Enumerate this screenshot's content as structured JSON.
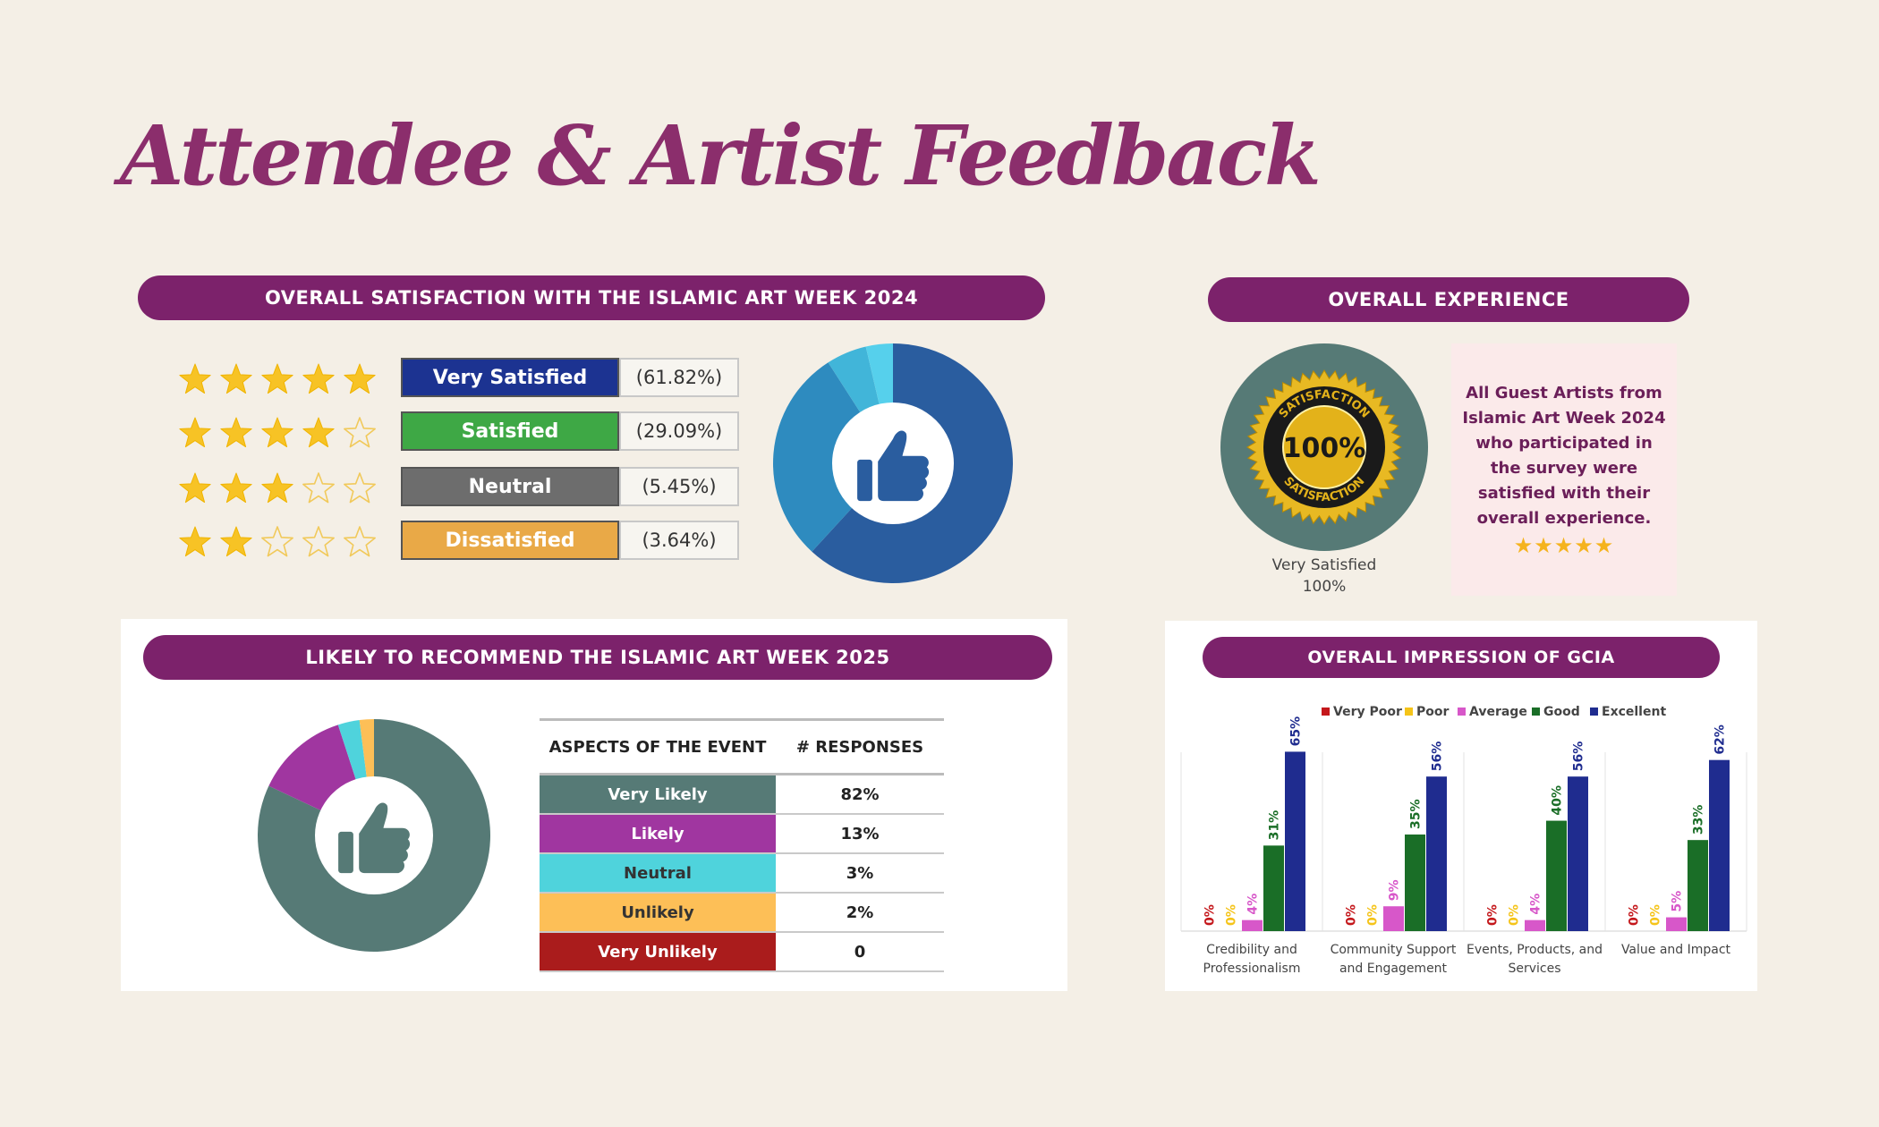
{
  "page_title": "Attendee & Artist Feedback",
  "satisfaction": {
    "header": "OVERALL SATISFACTION WITH THE ISLAMIC ART WEEK 2024",
    "rows": [
      {
        "label": "Very Satisfied",
        "pct": "(61.82%)",
        "stars": 5,
        "color": "#1c3391"
      },
      {
        "label": "Satisfied",
        "pct": "(29.09%)",
        "stars": 4,
        "color": "#3ea845"
      },
      {
        "label": "Neutral",
        "pct": "(5.45%)",
        "stars": 3,
        "color": "#6d6d6d"
      },
      {
        "label": "Dissatisfied",
        "pct": "(3.64%)",
        "stars": 2,
        "color": "#e9a947"
      }
    ]
  },
  "experience": {
    "header": "OVERALL EXPERIENCE",
    "seal_top": "SATISFACTION",
    "seal_center": "100%",
    "seal_bottom": "SATISFACTION",
    "caption_label": "Very Satisfied",
    "caption_value": "100%",
    "note_lines": [
      "All Guest Artists from",
      "Islamic Art Week 2024",
      "who participated in",
      "the survey were",
      "satisfied with their",
      "overall experience."
    ],
    "note_stars": "★★★★★"
  },
  "recommend": {
    "header": "LIKELY TO RECOMMEND THE ISLAMIC ART WEEK 2025",
    "col_aspect": "ASPECTS OF THE EVENT",
    "col_responses": "# RESPONSES",
    "rows": [
      {
        "label": "Very Likely",
        "value": "82%",
        "color": "#567a76"
      },
      {
        "label": "Likely",
        "value": "13%",
        "color": "#a036a0"
      },
      {
        "label": "Neutral",
        "value": "3%",
        "color": "#4fd3dc"
      },
      {
        "label": "Unlikely",
        "value": "2%",
        "color": "#fdbf57"
      },
      {
        "label": "Very Unlikely",
        "value": "0",
        "color": "#aa1c1c"
      }
    ]
  },
  "gcia": {
    "header": "OVERALL IMPRESSION OF GCIA"
  },
  "chart_data": [
    {
      "type": "pie",
      "categories": [
        "Very Satisfied",
        "Satisfied",
        "Neutral",
        "Dissatisfied"
      ],
      "values": [
        61.82,
        29.09,
        5.45,
        3.64
      ],
      "colors": [
        "#2a5d9f",
        "#2e8bbf",
        "#41b5d9",
        "#56d0ec"
      ]
    },
    {
      "type": "pie",
      "categories": [
        "Very Likely",
        "Likely",
        "Neutral",
        "Unlikely",
        "Very Unlikely"
      ],
      "values": [
        82,
        13,
        3,
        2,
        0
      ],
      "colors": [
        "#567a76",
        "#a036a0",
        "#4fd3dc",
        "#fdbf57",
        "#aa1c1c"
      ]
    },
    {
      "type": "pie",
      "categories": [
        "Very Satisfied"
      ],
      "values": [
        100
      ],
      "colors": [
        "#567a76"
      ]
    },
    {
      "type": "bar",
      "title": "OVERALL IMPRESSION OF GCIA",
      "legend_position": "top",
      "categories": [
        [
          "Credibility and",
          "Professionalism"
        ],
        [
          "Community Support",
          "and Engagement"
        ],
        [
          "Events, Products, and",
          "Services"
        ],
        [
          "Value and Impact"
        ]
      ],
      "series": [
        {
          "name": "Very Poor",
          "color": "#c4171b",
          "values": [
            0,
            0,
            0,
            0
          ],
          "labels": [
            "0%",
            "0%",
            "0%",
            "0%"
          ]
        },
        {
          "name": "Poor",
          "color": "#f5c419",
          "values": [
            0,
            0,
            0,
            0
          ],
          "labels": [
            "0%",
            "0%",
            "0%",
            "0%"
          ]
        },
        {
          "name": "Average",
          "color": "#d757c9",
          "values": [
            4,
            9,
            4,
            5
          ],
          "labels": [
            "4%",
            "9%",
            "4%",
            "5%"
          ]
        },
        {
          "name": "Good",
          "color": "#1a6e27",
          "values": [
            31,
            35,
            40,
            33
          ],
          "labels": [
            "31%",
            "35%",
            "40%",
            "33%"
          ]
        },
        {
          "name": "Excellent",
          "color": "#1f2c8f",
          "values": [
            65,
            56,
            56,
            62
          ],
          "labels": [
            "65%",
            "56%",
            "56%",
            "62%"
          ]
        }
      ],
      "ylim": [
        0,
        70
      ]
    }
  ]
}
